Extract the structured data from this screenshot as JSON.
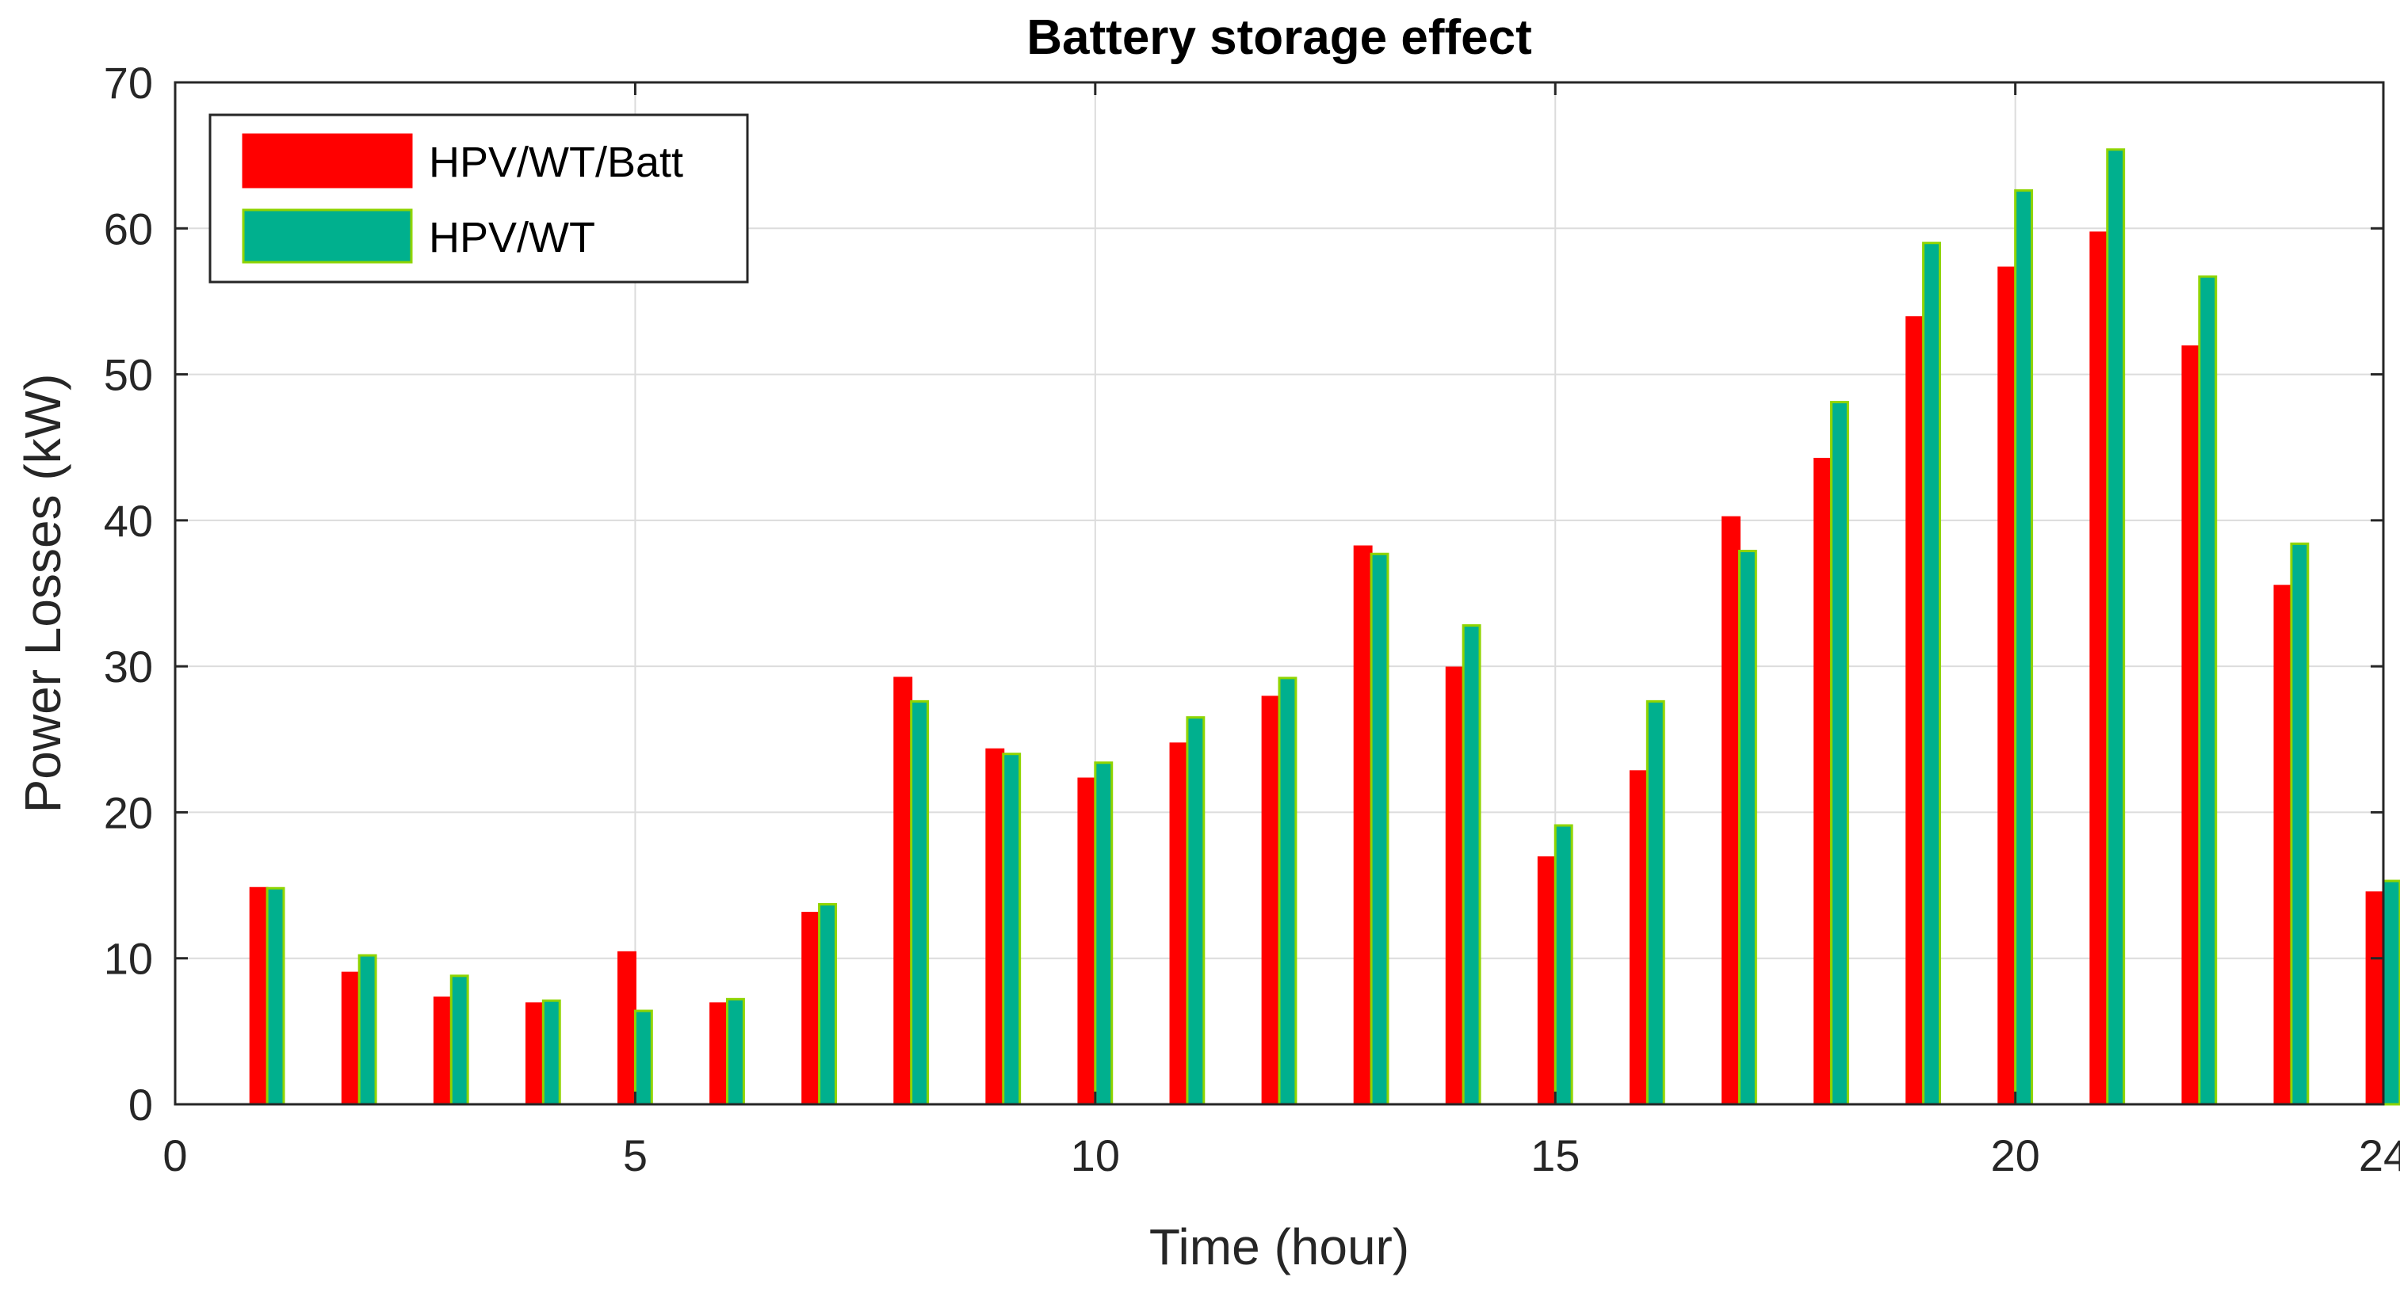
{
  "chart_data": {
    "type": "bar",
    "title": "Battery storage effect",
    "xlabel": "Time (hour)",
    "ylabel": "Power Losses (kW)",
    "xlim": [
      0,
      24
    ],
    "ylim": [
      0,
      70
    ],
    "xticks": [
      "0",
      "5",
      "10",
      "15",
      "20",
      "24"
    ],
    "xtick_values": [
      0,
      5,
      10,
      15,
      20,
      24
    ],
    "yticks": [
      "0",
      "10",
      "20",
      "30",
      "40",
      "50",
      "60",
      "70"
    ],
    "ytick_values": [
      0,
      10,
      20,
      30,
      40,
      50,
      60,
      70
    ],
    "grid": true,
    "legend_position": "top-left",
    "categories": [
      1,
      2,
      3,
      4,
      5,
      6,
      7,
      8,
      9,
      10,
      11,
      12,
      13,
      14,
      15,
      16,
      17,
      18,
      19,
      20,
      21,
      22,
      23,
      24
    ],
    "series": [
      {
        "name": "HPV/WT/Batt",
        "color": "#ff0000",
        "edge_color": "#ff0000",
        "values": [
          14.8,
          9.0,
          7.3,
          6.9,
          10.4,
          6.9,
          13.1,
          29.2,
          24.3,
          22.3,
          24.7,
          27.9,
          38.2,
          29.9,
          16.9,
          22.8,
          40.2,
          44.2,
          53.9,
          57.3,
          59.7,
          51.9,
          35.5,
          14.5
        ]
      },
      {
        "name": "HPV/WT",
        "color": "#00b08e",
        "edge_color": "#8fd400",
        "values": [
          14.8,
          10.2,
          8.8,
          7.1,
          6.4,
          7.2,
          13.7,
          27.6,
          24.0,
          23.4,
          26.5,
          29.2,
          37.7,
          32.8,
          19.1,
          27.6,
          37.9,
          48.1,
          59.0,
          62.6,
          65.4,
          56.7,
          38.4,
          15.3
        ]
      }
    ]
  }
}
